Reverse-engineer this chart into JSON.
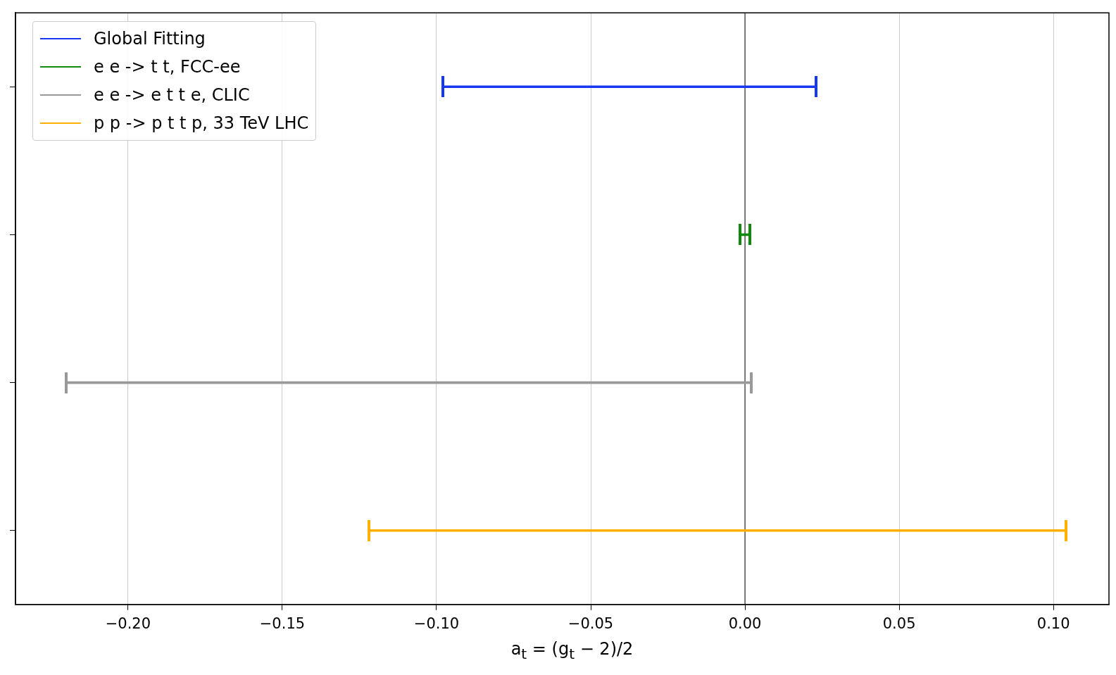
{
  "chart_data": {
    "type": "bar",
    "orientation": "horizontal",
    "xlabel": "a$_{t}$ = (g$_{t}$ − 2)/2",
    "categories": [
      null,
      null,
      null,
      null
    ],
    "series": [
      {
        "name": "Global Fitting",
        "color": "#1638f2",
        "values": [
          0.121,
          null,
          null,
          null
        ],
        "base": [
          -0.098,
          null,
          null,
          null
        ]
      },
      {
        "name": "e e -> t t, FCC-ee",
        "color": "#0f8a0f",
        "values": [
          null,
          0.003,
          null,
          null
        ],
        "base": [
          null,
          -0.0015,
          null,
          null
        ]
      },
      {
        "name": "e e -> e t t e, CLIC",
        "color": "#999999",
        "values": [
          null,
          null,
          0.222,
          null
        ],
        "base": [
          null,
          null,
          -0.22,
          null
        ]
      },
      {
        "name": "p p -> p t t p, 33 TeV LHC",
        "color": "#ffb000",
        "values": [
          null,
          null,
          null,
          0.226
        ],
        "base": [
          null,
          null,
          null,
          -0.122
        ]
      }
    ],
    "xlim": [
      -0.2365,
      0.118
    ],
    "xticks": [
      {
        "value": -0.2,
        "label": "−0.20"
      },
      {
        "value": -0.15,
        "label": "−0.15"
      },
      {
        "value": -0.1,
        "label": "−0.10"
      },
      {
        "value": -0.05,
        "label": "−0.05"
      },
      {
        "value": 0,
        "label": "0.00"
      },
      {
        "value": 0.05,
        "label": "0.05"
      },
      {
        "value": 0.1,
        "label": "0.10"
      }
    ],
    "ref_lines": [
      {
        "axis": "x",
        "value": 0,
        "color": "#555555"
      }
    ],
    "grid": "x",
    "legend": "top left",
    "tick_labels": "x"
  }
}
